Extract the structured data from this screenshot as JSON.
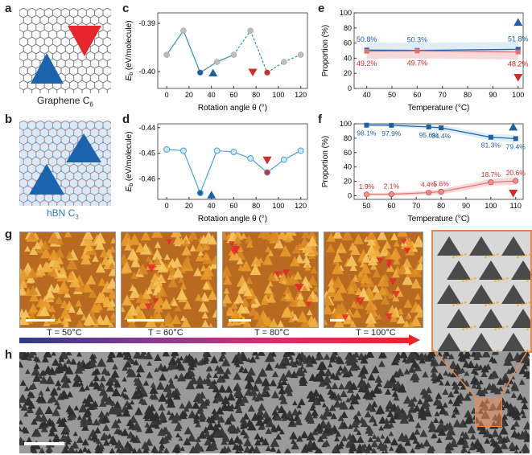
{
  "panels": {
    "a": {
      "label": "a",
      "caption": "Graphene C",
      "caption_sub": "6"
    },
    "b": {
      "label": "b",
      "caption": "hBN C",
      "caption_sub": "3"
    },
    "c": {
      "label": "c"
    },
    "d": {
      "label": "d"
    },
    "e": {
      "label": "e"
    },
    "f": {
      "label": "f"
    },
    "g": {
      "label": "g"
    },
    "h": {
      "label": "h"
    }
  },
  "colors": {
    "blue": "#1f5fa8",
    "red": "#d42a2a",
    "gray": "#bdbdbd",
    "lightblue": "#4aa3d8",
    "teal": "#2a9aa8"
  },
  "chart_data": [
    {
      "id": "c",
      "type": "line",
      "xlabel": "Rotation angle θ (°)",
      "ylabel": "E_b (eV/molecule)",
      "xlim": [
        -8,
        126
      ],
      "ylim": [
        -0.4035,
        -0.3878
      ],
      "xticks": [
        0,
        20,
        40,
        60,
        80,
        100,
        120
      ],
      "yticks": [
        -0.39,
        -0.4
      ],
      "ytick_labels": [
        "-0.39",
        "-0.40"
      ],
      "series": [
        {
          "name": "energy",
          "x": [
            0,
            15,
            30,
            45,
            60,
            75,
            90,
            105,
            120
          ],
          "y": [
            -0.3965,
            -0.3915,
            -0.4002,
            -0.398,
            -0.3965,
            -0.3915,
            -0.4002,
            -0.398,
            -0.3965
          ],
          "highlight": {
            "2": "blue",
            "6": "red"
          }
        }
      ]
    },
    {
      "id": "d",
      "type": "line",
      "xlabel": "Rotation angle θ (°)",
      "ylabel": "E_b (eV/molecule)",
      "xlim": [
        -8,
        126
      ],
      "ylim": [
        -0.468,
        -0.4385
      ],
      "xticks": [
        0,
        20,
        40,
        60,
        80,
        100,
        120
      ],
      "yticks": [
        -0.44,
        -0.45,
        -0.46
      ],
      "ytick_labels": [
        "-0.44",
        "-0.45",
        "-0.46"
      ],
      "series": [
        {
          "name": "energy",
          "x": [
            0,
            15,
            30,
            45,
            60,
            75,
            90,
            105,
            120
          ],
          "y": [
            -0.4485,
            -0.449,
            -0.4655,
            -0.449,
            -0.4495,
            -0.452,
            -0.4575,
            -0.4525,
            -0.449
          ],
          "highlight": {
            "2": "blue",
            "6": "red"
          }
        }
      ]
    },
    {
      "id": "e",
      "type": "line",
      "xlabel": "Temperature (°C)",
      "ylabel": "Proportion (%)",
      "xlim": [
        35,
        102
      ],
      "ylim": [
        0,
        100
      ],
      "xticks": [
        40,
        50,
        60,
        70,
        80,
        90,
        100
      ],
      "yticks": [
        0,
        20,
        40,
        60,
        80,
        100
      ],
      "series": [
        {
          "name": "blue",
          "x": [
            40,
            60,
            100
          ],
          "y": [
            50.8,
            50.3,
            51.8
          ],
          "labels": [
            "50.8%",
            "50.3%",
            "51.8%"
          ]
        },
        {
          "name": "red",
          "x": [
            40,
            60,
            100
          ],
          "y": [
            49.2,
            49.7,
            48.2
          ],
          "labels": [
            "49.2%",
            "49.7%",
            "48.2%"
          ]
        }
      ]
    },
    {
      "id": "f",
      "type": "line",
      "xlabel": "Temperature (°C)",
      "ylabel": "Proportion (%)",
      "xlim": [
        45,
        113
      ],
      "ylim": [
        -5,
        100
      ],
      "xticks": [
        50,
        60,
        70,
        80,
        90,
        100,
        110
      ],
      "yticks": [
        0,
        20,
        40,
        60,
        80,
        100
      ],
      "series": [
        {
          "name": "blue",
          "x": [
            50,
            60,
            75,
            80,
            100,
            110
          ],
          "y": [
            98.1,
            97.9,
            95.6,
            94.4,
            81.3,
            79.4
          ],
          "labels": [
            "98.1%",
            "97.9%",
            "95.6%",
            "94.4%",
            "81.3%",
            "79.4%"
          ]
        },
        {
          "name": "red",
          "x": [
            50,
            60,
            75,
            80,
            100,
            110
          ],
          "y": [
            1.9,
            2.1,
            4.4,
            5.6,
            18.7,
            20.6
          ],
          "labels": [
            "1.9%",
            "2.1%",
            "4.4%",
            "5.6%",
            "18.7%",
            "20.6%"
          ]
        }
      ]
    }
  ],
  "temperatures": [
    "T = 50°C",
    "T = 60°C",
    "T = 80°C",
    "T = 100°C"
  ]
}
